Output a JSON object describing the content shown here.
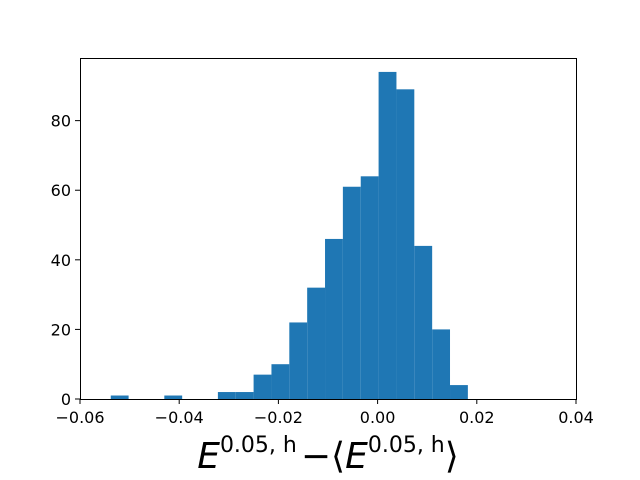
{
  "chart_data": {
    "type": "histogram",
    "bar_color": "#1f77b4",
    "xlabel": {
      "base": "E",
      "sup": "0.05, h",
      "op": "−",
      "lang": "⟨",
      "rang": "⟩"
    },
    "xlim": [
      -0.06,
      0.04
    ],
    "ylim": [
      0,
      98
    ],
    "xticks": [
      -0.06,
      -0.04,
      -0.02,
      0.0,
      0.02,
      0.04
    ],
    "xtick_labels": [
      "−0.06",
      "−0.04",
      "−0.02",
      "0.00",
      "0.02",
      "0.04"
    ],
    "yticks": [
      0,
      20,
      40,
      60,
      80
    ],
    "ytick_labels": [
      "0",
      "20",
      "40",
      "60",
      "80"
    ],
    "grid": false,
    "bins": [
      {
        "x0": -0.0538,
        "x1": -0.0502,
        "count": 1
      },
      {
        "x0": -0.0502,
        "x1": -0.0466,
        "count": 0
      },
      {
        "x0": -0.0466,
        "x1": -0.043,
        "count": 0
      },
      {
        "x0": -0.043,
        "x1": -0.0394,
        "count": 1
      },
      {
        "x0": -0.0394,
        "x1": -0.0358,
        "count": 0
      },
      {
        "x0": -0.0358,
        "x1": -0.0322,
        "count": 0
      },
      {
        "x0": -0.0322,
        "x1": -0.0286,
        "count": 2
      },
      {
        "x0": -0.0286,
        "x1": -0.025,
        "count": 2
      },
      {
        "x0": -0.025,
        "x1": -0.0214,
        "count": 7
      },
      {
        "x0": -0.0214,
        "x1": -0.0178,
        "count": 10
      },
      {
        "x0": -0.0178,
        "x1": -0.0142,
        "count": 22
      },
      {
        "x0": -0.0142,
        "x1": -0.0106,
        "count": 32
      },
      {
        "x0": -0.0106,
        "x1": -0.007,
        "count": 46
      },
      {
        "x0": -0.007,
        "x1": -0.0034,
        "count": 61
      },
      {
        "x0": -0.0034,
        "x1": 0.0002,
        "count": 64
      },
      {
        "x0": 0.0002,
        "x1": 0.0038,
        "count": 94
      },
      {
        "x0": 0.0038,
        "x1": 0.0074,
        "count": 89
      },
      {
        "x0": 0.0074,
        "x1": 0.011,
        "count": 44
      },
      {
        "x0": 0.011,
        "x1": 0.0146,
        "count": 20
      },
      {
        "x0": 0.0146,
        "x1": 0.0182,
        "count": 4
      }
    ]
  }
}
